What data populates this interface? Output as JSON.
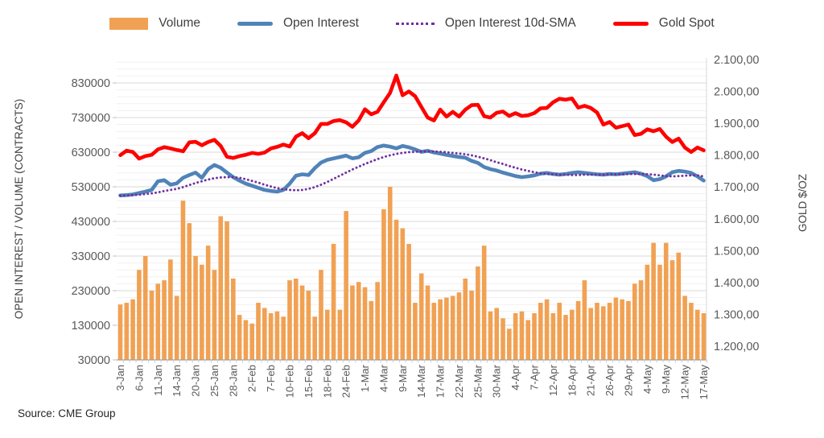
{
  "header": {
    "legend": [
      {
        "label": "Volume",
        "marker": "bar",
        "color": "#F1A153"
      },
      {
        "label": "Open Interest",
        "marker": "line",
        "color": "#5083B8"
      },
      {
        "label": "Open Interest 10d-SMA",
        "marker": "dotted",
        "color": "#7030A0"
      },
      {
        "label": "Gold Spot",
        "marker": "line",
        "color": "#FF0000"
      }
    ]
  },
  "source": "Source: CME Group",
  "chart_data": {
    "type": "combo",
    "n_points": 94,
    "label_every": 3,
    "x_labels": [
      "3-Jan",
      "6-Jan",
      "11-Jan",
      "14-Jan",
      "20-Jan",
      "25-Jan",
      "28-Jan",
      "2-Feb",
      "7-Feb",
      "10-Feb",
      "15-Feb",
      "18-Feb",
      "24-Feb",
      "1-Mar",
      "4-Mar",
      "9-Mar",
      "14-Mar",
      "17-Mar",
      "22-Mar",
      "25-Mar",
      "30-Mar",
      "4-Apr",
      "7-Apr",
      "12-Apr",
      "18-Apr",
      "21-Apr",
      "26-Apr",
      "29-Apr",
      "4-May",
      "9-May",
      "12-May",
      "17-May"
    ],
    "left_axis": {
      "title": "OPEN INTEREST / VOLUME (CONTRACTS)",
      "tick_labels": [
        "830000",
        "730000",
        "630000",
        "530000",
        "430000",
        "330000",
        "230000",
        "130000",
        "30000"
      ],
      "tick_values": [
        830000,
        730000,
        630000,
        530000,
        430000,
        330000,
        230000,
        130000,
        30000
      ],
      "min": 30000,
      "max": 830000,
      "minor_step": 20000,
      "minor_max": 900000
    },
    "right_axis": {
      "title": "GOLD $/OZ",
      "tick_labels": [
        "2.100,00",
        "2.000,00",
        "1.900,00",
        "1.800,00",
        "1.700,00",
        "1.600,00",
        "1.500,00",
        "1.400,00",
        "1.300,00",
        "1.200,00"
      ],
      "tick_values": [
        2100,
        2000,
        1900,
        1800,
        1700,
        1600,
        1500,
        1400,
        1300,
        1200
      ],
      "min": 1200,
      "max": 2100
    },
    "series": [
      {
        "name": "Volume",
        "type": "bar",
        "axis": "left",
        "color": "#F1A153",
        "values": [
          190000,
          195000,
          205000,
          290000,
          330000,
          230000,
          250000,
          260000,
          320000,
          215000,
          490000,
          425000,
          330000,
          305000,
          360000,
          290000,
          445000,
          430000,
          265000,
          160000,
          145000,
          135000,
          195000,
          180000,
          165000,
          170000,
          155000,
          260000,
          265000,
          245000,
          230000,
          155000,
          290000,
          175000,
          365000,
          175000,
          460000,
          245000,
          255000,
          240000,
          200000,
          255000,
          465000,
          530000,
          435000,
          410000,
          365000,
          195000,
          280000,
          245000,
          195000,
          205000,
          210000,
          215000,
          225000,
          265000,
          230000,
          300000,
          360000,
          170000,
          180000,
          150000,
          120000,
          165000,
          170000,
          145000,
          165000,
          195000,
          205000,
          165000,
          195000,
          160000,
          175000,
          200000,
          260000,
          180000,
          195000,
          185000,
          195000,
          210000,
          205000,
          200000,
          250000,
          260000,
          305000,
          368000,
          305000,
          368000,
          318000,
          340000,
          215000,
          195000,
          175000,
          165000
        ]
      },
      {
        "name": "Open Interest",
        "type": "line",
        "axis": "left",
        "color": "#5083B8",
        "width": 4.6,
        "values": [
          505000,
          506000,
          508000,
          512000,
          516000,
          521000,
          546000,
          549000,
          536000,
          540000,
          556000,
          564000,
          571000,
          556000,
          581000,
          593000,
          585000,
          571000,
          558000,
          548000,
          539000,
          533000,
          527000,
          521000,
          518000,
          516000,
          521000,
          539000,
          562000,
          566000,
          564000,
          584000,
          600000,
          608000,
          612000,
          616000,
          620000,
          612000,
          615000,
          628000,
          633000,
          645000,
          649000,
          646000,
          641000,
          648000,
          644000,
          638000,
          631000,
          634000,
          629000,
          626000,
          622000,
          619000,
          616000,
          614000,
          605000,
          599000,
          587000,
          581000,
          577000,
          571000,
          566000,
          561000,
          558000,
          560000,
          563000,
          568000,
          570000,
          567000,
          565000,
          567000,
          570000,
          572000,
          570000,
          568000,
          566000,
          565000,
          567000,
          566000,
          568000,
          570000,
          572000,
          568000,
          561000,
          549000,
          552000,
          560000,
          572000,
          576000,
          574000,
          570000,
          560000,
          548000
        ]
      },
      {
        "name": "Open Interest 10d-SMA",
        "type": "dotted",
        "axis": "left",
        "color": "#7030A0",
        "width": 2.9,
        "values": [
          505000,
          505000,
          506000,
          507000,
          509000,
          511000,
          514000,
          518000,
          521000,
          524000,
          529000,
          535000,
          541000,
          546000,
          551000,
          555000,
          557000,
          558000,
          558000,
          556000,
          552000,
          547000,
          542000,
          536000,
          531000,
          526000,
          523000,
          521000,
          520000,
          521000,
          524000,
          529000,
          536000,
          544000,
          553000,
          562000,
          571000,
          580000,
          588000,
          596000,
          603000,
          610000,
          616000,
          621000,
          625000,
          628000,
          630000,
          631000,
          632000,
          632000,
          632000,
          631000,
          630000,
          628000,
          626000,
          624000,
          621000,
          617000,
          612000,
          607000,
          601000,
          596000,
          590000,
          585000,
          580000,
          576000,
          572000,
          569000,
          567000,
          566000,
          565000,
          565000,
          564000,
          564000,
          565000,
          565000,
          565000,
          565000,
          566000,
          566000,
          566000,
          567000,
          567000,
          567000,
          566000,
          565000,
          563000,
          561000,
          560000,
          561000,
          562000,
          563000,
          563000,
          560000
        ]
      },
      {
        "name": "Gold Spot",
        "type": "line",
        "axis": "right",
        "color": "#FF0000",
        "width": 4.6,
        "values": [
          1800,
          1814,
          1810,
          1789,
          1797,
          1801,
          1818,
          1825,
          1821,
          1816,
          1812,
          1840,
          1842,
          1831,
          1841,
          1848,
          1829,
          1795,
          1791,
          1797,
          1801,
          1807,
          1804,
          1808,
          1821,
          1826,
          1833,
          1827,
          1858,
          1869,
          1853,
          1869,
          1898,
          1898,
          1907,
          1910,
          1903,
          1889,
          1909,
          1944,
          1928,
          1936,
          1966,
          1995,
          2050,
          1988,
          2000,
          1985,
          1951,
          1918,
          1909,
          1943,
          1921,
          1936,
          1921,
          1943,
          1957,
          1958,
          1922,
          1918,
          1933,
          1937,
          1923,
          1932,
          1923,
          1925,
          1932,
          1947,
          1948,
          1966,
          1977,
          1974,
          1978,
          1949,
          1955,
          1948,
          1934,
          1896,
          1904,
          1886,
          1891,
          1896,
          1863,
          1867,
          1881,
          1875,
          1882,
          1858,
          1841,
          1852,
          1824,
          1810,
          1824,
          1815
        ]
      }
    ],
    "colors": {
      "grid_major": "#D9D9D9",
      "grid_minor": "#F0F0F0",
      "axis_line": "#A0A0A0",
      "tick_text": "#595959",
      "title_text": "#404040"
    }
  }
}
